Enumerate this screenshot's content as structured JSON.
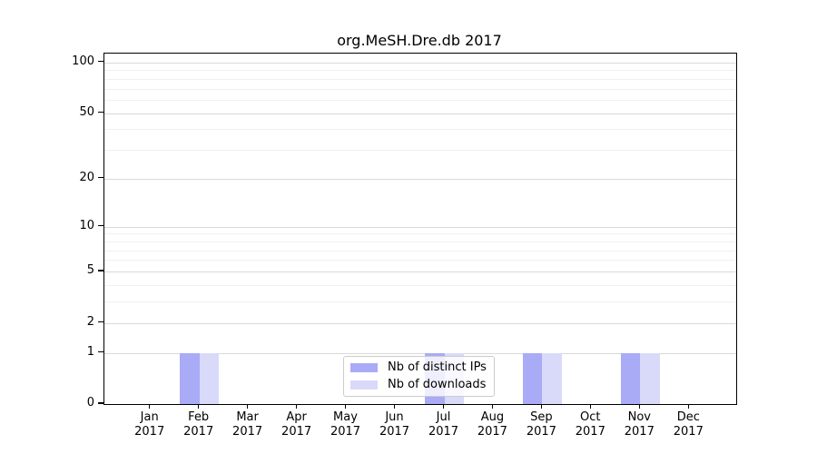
{
  "chart_data": {
    "type": "bar",
    "title": "org.MeSH.Dre.db 2017",
    "categories": [
      "Jan",
      "Feb",
      "Mar",
      "Apr",
      "May",
      "Jun",
      "Jul",
      "Aug",
      "Sep",
      "Oct",
      "Nov",
      "Dec"
    ],
    "category_year": "2017",
    "series": [
      {
        "name": "Nb of distinct IPs",
        "color": "#a9abf6",
        "values": [
          0,
          1,
          0,
          0,
          0,
          0,
          1,
          0,
          1,
          0,
          1,
          0
        ]
      },
      {
        "name": "Nb of downloads",
        "color": "#d9daf9",
        "values": [
          0,
          1,
          0,
          0,
          0,
          0,
          1,
          0,
          1,
          0,
          1,
          0
        ]
      }
    ],
    "y_scale": "log1p",
    "y_ticks": [
      0,
      1,
      2,
      5,
      10,
      20,
      50,
      100
    ],
    "y_minor_gridlines": [
      3,
      4,
      6,
      7,
      8,
      9,
      30,
      40,
      60,
      70,
      80,
      90
    ],
    "ylim": [
      0,
      113
    ],
    "xlabel": "",
    "ylabel": "",
    "grid": "horizontal",
    "legend_position": "bottom-center",
    "background_color": "#ffffff",
    "axis_color": "#000000",
    "major_grid_color": "#d9d9d9",
    "minor_grid_color": "#f0f0f0"
  }
}
